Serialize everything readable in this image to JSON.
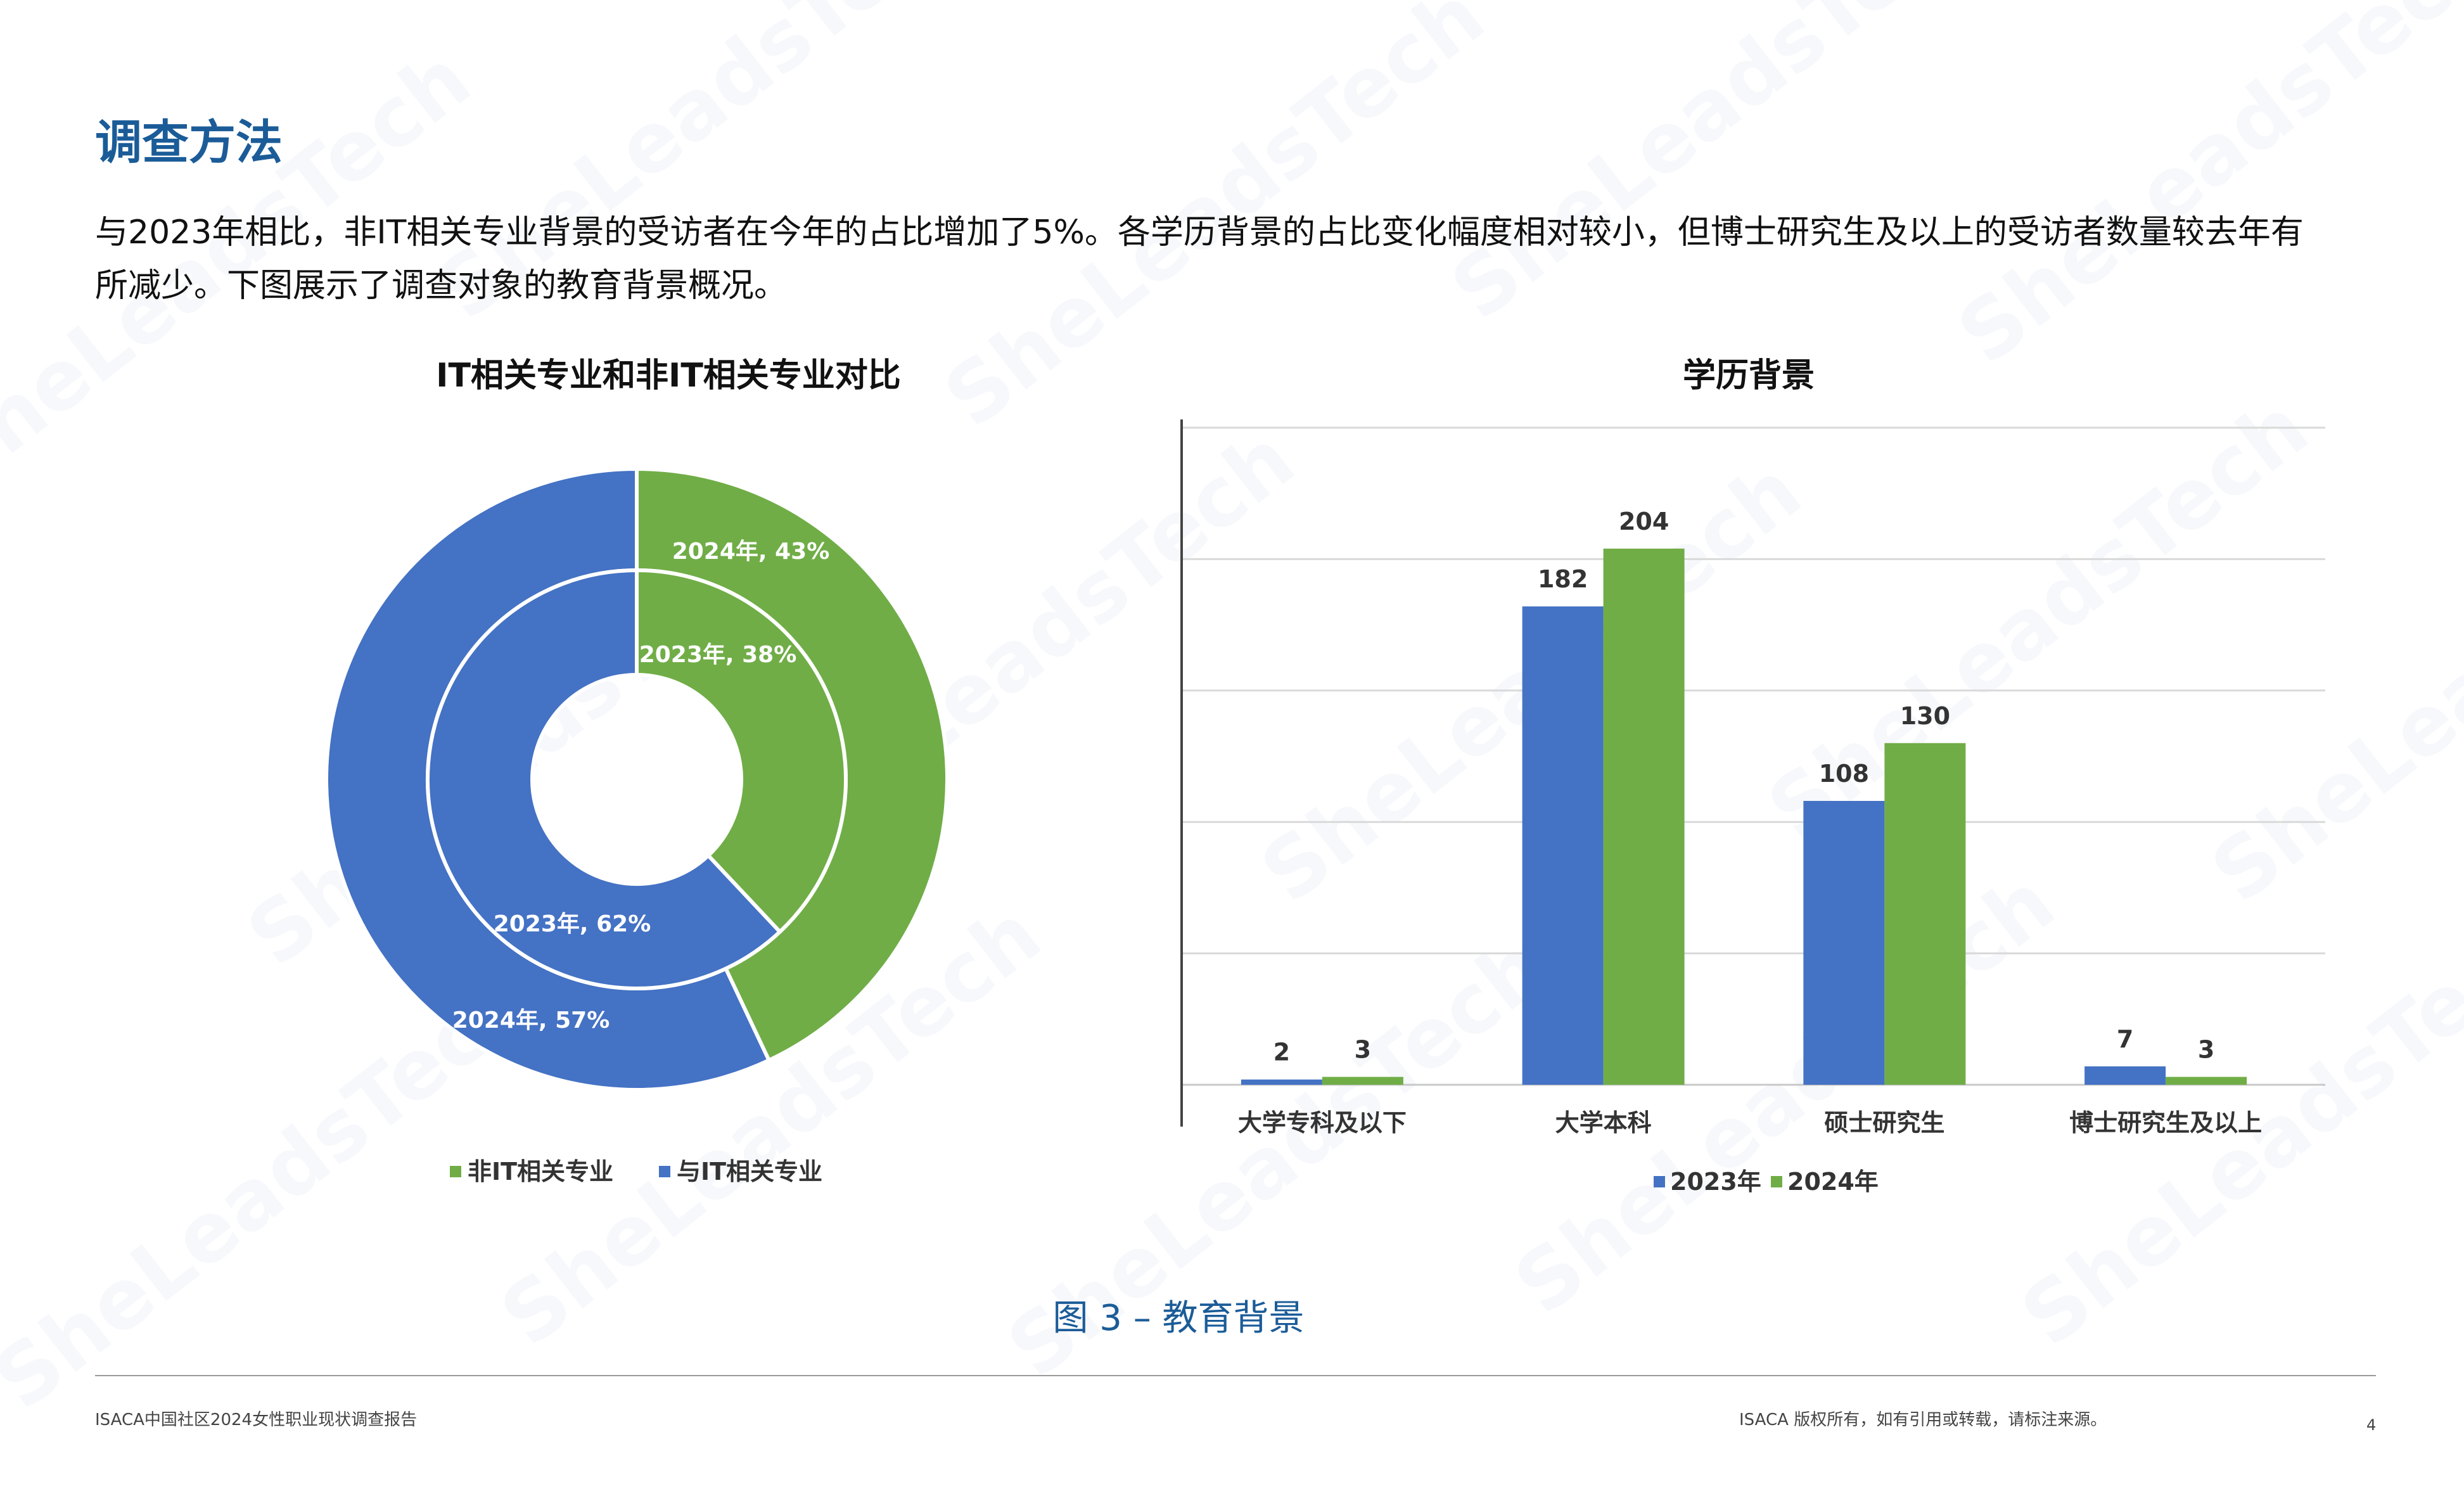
{
  "page": {
    "title": "调查方法",
    "intro": "与2023年相比，非IT相关专业背景的受访者在今年的占比增加了5%。各学历背景的占比变化幅度相对较小，但博士研究生及以上的受访者数量较去年有所减少。下图展示了调查对象的教育背景概况。",
    "figure_caption": "图 3 – 教育背景",
    "footer_left": "ISACA中国社区2024女性职业现状调查报告",
    "footer_right": "ISACA 版权所有，如有引用或转载，请标注来源。",
    "page_number": "4",
    "watermark_text": "SheLeadsTech",
    "colors": {
      "title": "#1b5c98",
      "blue": "#4472c4",
      "green": "#70ad47"
    }
  },
  "chart_data": [
    {
      "type": "pie",
      "variant": "double-donut",
      "title": "IT相关专业和非IT相关专业对比",
      "legend": [
        "非IT相关专业",
        "与IT相关专业"
      ],
      "legend_position": "bottom",
      "rings": [
        {
          "ring": "outer",
          "slices": [
            {
              "label": "2024年, 43%",
              "category": "非IT相关专业",
              "value": 43,
              "color": "#70ad47"
            },
            {
              "label": "2024年, 57%",
              "category": "与IT相关专业",
              "value": 57,
              "color": "#4472c4"
            }
          ]
        },
        {
          "ring": "inner",
          "slices": [
            {
              "label": "2023年, 38%",
              "category": "非IT相关专业",
              "value": 38,
              "color": "#70ad47"
            },
            {
              "label": "2023年, 62%",
              "category": "与IT相关专业",
              "value": 62,
              "color": "#4472c4"
            }
          ]
        }
      ]
    },
    {
      "type": "bar",
      "title": "学历背景",
      "categories": [
        "大学专科及以下",
        "大学本科",
        "硕士研究生",
        "博士研究生及以上"
      ],
      "series": [
        {
          "name": "2023年",
          "values": [
            2,
            182,
            108,
            7
          ],
          "color": "#4472c4"
        },
        {
          "name": "2024年",
          "values": [
            3,
            204,
            130,
            3
          ],
          "color": "#70ad47"
        }
      ],
      "ylim": [
        0,
        250
      ],
      "gridlines": true,
      "legend_position": "bottom"
    }
  ]
}
